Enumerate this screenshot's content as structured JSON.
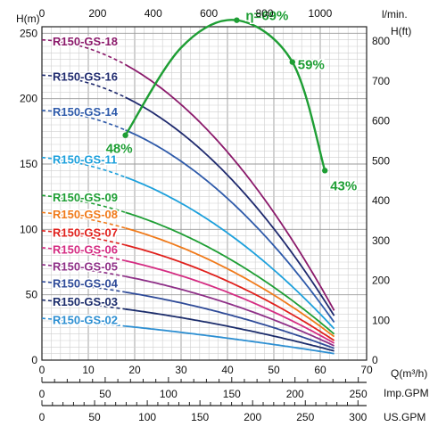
{
  "chart_data": {
    "type": "line",
    "units": {
      "left_axis": "H(m)",
      "right_axis": "H(ft)",
      "top_axis": "l/min.",
      "bottom_axis": "Q(m³/h)",
      "imp_axis": "Imp.GPM",
      "us_axis": "US.GPM"
    },
    "axes": {
      "x": {
        "range": [
          0,
          70
        ],
        "ticks": [
          0,
          10,
          20,
          30,
          40,
          50,
          60,
          70
        ],
        "tick_labels": [
          "0",
          "10",
          "20",
          "30",
          "40",
          "50",
          "60",
          "70"
        ]
      },
      "y_left": {
        "range": [
          0,
          255
        ],
        "ticks": [
          0,
          50,
          100,
          150,
          200,
          250
        ],
        "tick_labels": [
          "0",
          "50",
          "100",
          "150",
          "200",
          "250"
        ]
      },
      "y_right": {
        "range": [
          0,
          836
        ],
        "ticks": [
          0,
          100,
          200,
          300,
          400,
          500,
          600,
          700,
          800
        ],
        "tick_labels": [
          "0",
          "100",
          "200",
          "300",
          "400",
          "500",
          "600",
          "700",
          "800"
        ]
      },
      "top": {
        "range": [
          0,
          1167
        ],
        "ticks": [
          0,
          200,
          400,
          600,
          800,
          1000
        ],
        "tick_labels": [
          "0",
          "200",
          "400",
          "600",
          "800",
          "1000"
        ]
      },
      "imp": {
        "range": [
          0,
          256.6
        ],
        "ticks": [
          0,
          50,
          100,
          150,
          200,
          250
        ],
        "tick_labels": [
          "0",
          "50",
          "100",
          "150",
          "200",
          "250"
        ],
        "minor_step": 10
      },
      "us": {
        "range": [
          0,
          308.2
        ],
        "ticks": [
          0,
          50,
          100,
          150,
          200,
          250,
          300
        ],
        "tick_labels": [
          "0",
          "50",
          "100",
          "150",
          "200",
          "250",
          "300"
        ],
        "minor_step": 10
      }
    },
    "grid": true,
    "operating_range": [
      18,
      63
    ],
    "series": [
      {
        "name": "R150-GS-18",
        "color": "#8B1A6B",
        "h0": 245,
        "h18": 226,
        "h63": 38
      },
      {
        "name": "R150-GS-16",
        "color": "#1F2A6E",
        "h0": 218,
        "h18": 201,
        "h63": 34
      },
      {
        "name": "R150-GS-14",
        "color": "#2E5AAA",
        "h0": 191,
        "h18": 176,
        "h63": 29
      },
      {
        "name": "R150-GS-11",
        "color": "#1CA0DC",
        "h0": 155,
        "h18": 140,
        "h63": 24
      },
      {
        "name": "R150-GS-09",
        "color": "#1E9E34",
        "h0": 126,
        "h18": 113,
        "h63": 20
      },
      {
        "name": "R150-GS-08",
        "color": "#F07A1A",
        "h0": 113,
        "h18": 101,
        "h63": 18
      },
      {
        "name": "R150-GS-07",
        "color": "#E0201C",
        "h0": 99,
        "h18": 88,
        "h63": 15
      },
      {
        "name": "R150-GS-06",
        "color": "#D42C82",
        "h0": 86,
        "h18": 76,
        "h63": 13
      },
      {
        "name": "R150-GS-05",
        "color": "#8E2F87",
        "h0": 73,
        "h18": 64,
        "h63": 11
      },
      {
        "name": "R150-GS-04",
        "color": "#2E4A98",
        "h0": 60,
        "h18": 52,
        "h63": 9
      },
      {
        "name": "R150-GS-03",
        "color": "#1B2C6B",
        "h0": 46,
        "h18": 39,
        "h63": 7
      },
      {
        "name": "R150-GS-02",
        "color": "#2D8FD2",
        "h0": 32,
        "h18": 26,
        "h63": 5
      }
    ],
    "efficiency": {
      "color": "#1E9E34",
      "x": [
        18,
        30,
        42,
        54,
        61
      ],
      "y": [
        172,
        239,
        260,
        228,
        145
      ],
      "labels": [
        "48%",
        "",
        "η=69%",
        "59%",
        "43%"
      ]
    }
  }
}
